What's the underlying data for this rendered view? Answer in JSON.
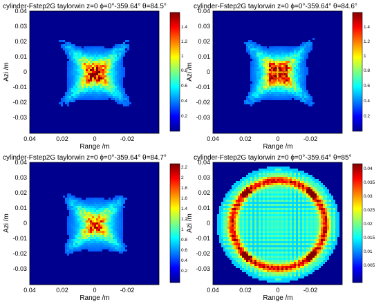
{
  "chart_data": [
    {
      "type": "heatmap",
      "title": "cylinder-Fstep2G  taylorwin  z=0  ϕ=0°-359.64°  θ=84.5°",
      "xlabel": "Range /m",
      "ylabel": "Azi /m",
      "xlim": [
        0.04,
        -0.04
      ],
      "ylim": [
        -0.04,
        0.04
      ],
      "x_ticks": [
        "0.04",
        "0.02",
        "0",
        "-0.02"
      ],
      "y_ticks": [
        "0.04",
        "0.03",
        "0.02",
        "0.01",
        "0",
        "-0.01",
        "-0.02",
        "-0.03"
      ],
      "colorbar_range": [
        0,
        1.5
      ],
      "colorbar_ticks": [
        "1.4",
        "1.2",
        "1",
        "0.8",
        "0.6",
        "0.4",
        "0.2"
      ],
      "pattern": "x-cross"
    },
    {
      "type": "heatmap",
      "title": "cylinder-Fstep2G  taylorwin  z=0  ϕ=0°-359.64°  θ=84.6°",
      "xlabel": "Range /m",
      "ylabel": "Azi /m",
      "xlim": [
        0.04,
        -0.04
      ],
      "ylim": [
        -0.04,
        0.04
      ],
      "x_ticks": [
        "0.04",
        "0.02",
        "0",
        "-0.02"
      ],
      "y_ticks": [
        "0.04",
        "0.03",
        "0.02",
        "0.01",
        "0",
        "-0.01",
        "-0.02",
        "-0.03"
      ],
      "colorbar_range": [
        0,
        1.5
      ],
      "colorbar_ticks": [
        "1.4",
        "1.2",
        "1",
        "0.8",
        "0.6",
        "0.4",
        "0.2"
      ],
      "pattern": "x-cross-bright"
    },
    {
      "type": "heatmap",
      "title": "cylinder-Fstep2G  taylorwin  z=0  ϕ=0°-359.64°  θ=84.7°",
      "xlabel": "Range /m",
      "ylabel": "Azi /m",
      "xlim": [
        0.04,
        -0.04
      ],
      "ylim": [
        -0.04,
        0.04
      ],
      "x_ticks": [
        "0.04",
        "0.02",
        "0",
        "-0.02"
      ],
      "y_ticks": [
        "0.04",
        "0.03",
        "0.02",
        "0.01",
        "0",
        "-0.01",
        "-0.02",
        "-0.03"
      ],
      "colorbar_range": [
        0,
        2.3
      ],
      "colorbar_ticks": [
        "2.2",
        "2",
        "1.8",
        "1.6",
        "1.4",
        "1.2",
        "1",
        "0.8",
        "0.6",
        "0.4",
        "0.2"
      ],
      "pattern": "x-cross-faint"
    },
    {
      "type": "heatmap",
      "title": "cylinder-Fstep2G  taylorwin  z=0  ϕ=0°-359.64°  θ=85°",
      "xlabel": "Range /m",
      "ylabel": "Azi /m",
      "xlim": [
        0.04,
        -0.04
      ],
      "ylim": [
        -0.04,
        0.04
      ],
      "x_ticks": [
        "0.04",
        "0.02",
        "0",
        "-0.02"
      ],
      "y_ticks": [
        "0.04",
        "0.03",
        "0.02",
        "0.01",
        "0",
        "-0.01",
        "-0.02",
        "-0.03"
      ],
      "colorbar_range": [
        0,
        0.043
      ],
      "colorbar_ticks": [
        "0.04",
        "0.035",
        "0.03",
        "0.025",
        "0.02",
        "0.015",
        "0.01",
        "0.005"
      ],
      "pattern": "ring"
    }
  ]
}
